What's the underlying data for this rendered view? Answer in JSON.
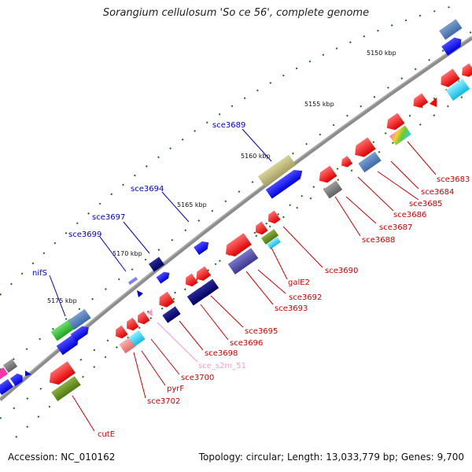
{
  "title": "Sorangium cellulosum 'So ce 56', complete genome",
  "footer": {
    "accession": "Accession: NC_010162",
    "summary": "Topology: circular; Length: 13,033,779 bp; Genes: 9,700"
  },
  "ticks": [
    {
      "label": "5150 kbp"
    },
    {
      "label": "5155 kbp"
    },
    {
      "label": "5160 kbp"
    },
    {
      "label": "5165 kbp"
    },
    {
      "label": "5170 kbp"
    },
    {
      "label": "5175 kbp"
    }
  ],
  "labels_blue": [
    {
      "text": "sce3689"
    },
    {
      "text": "sce3694"
    },
    {
      "text": "sce3697"
    },
    {
      "text": "sce3699"
    },
    {
      "text": "nifS"
    }
  ],
  "labels_red": [
    {
      "text": "sce3683"
    },
    {
      "text": "sce3684"
    },
    {
      "text": "sce3685"
    },
    {
      "text": "sce3686"
    },
    {
      "text": "sce3687"
    },
    {
      "text": "sce3688"
    },
    {
      "text": "sce3690"
    },
    {
      "text": "galE2"
    },
    {
      "text": "sce3692"
    },
    {
      "text": "sce3693"
    },
    {
      "text": "sce3695"
    },
    {
      "text": "sce3696"
    },
    {
      "text": "sce3698"
    },
    {
      "text": "sce_s2m_51"
    },
    {
      "text": "sce3700"
    },
    {
      "text": "pyrF"
    },
    {
      "text": "sce3702"
    },
    {
      "text": "cutE"
    }
  ],
  "colors": {
    "backbone": "#8c8c8c",
    "red_gene": "#ff0000",
    "blue_gene": "#0000ff",
    "navy_gene": "#00007a",
    "blue_label": "#0000cc",
    "red_label": "#cc0000",
    "pink_label": "#ff99cc",
    "dot": "#1a6b1a"
  }
}
